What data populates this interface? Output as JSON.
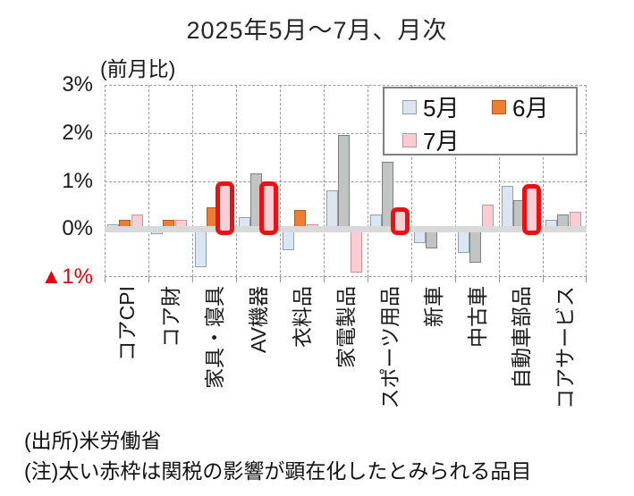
{
  "footer": {
    "source": "(出所)米労働省",
    "note": "(注)太い赤枠は関税の影響が顕在化したとみられる品目"
  },
  "colors": {
    "may_fill": "#dce6f1",
    "may_border": "#8e9fb5",
    "june_fill": "#ed7d31",
    "june_border": "#ae5a21",
    "june_gray_fill": "#c2c4c4",
    "june_gray_border": "#808080",
    "july_fill": "#f8cdd3",
    "july_border": "#cf9199",
    "red_frame": "#ee1010",
    "red_frame_inner": "#f6d0d6",
    "zero_band": "#d9d9d9",
    "gridline": "#999999",
    "negative_tick": "#e8000d"
  },
  "chart_data": {
    "type": "bar",
    "title": "2025年5月～7月、月次",
    "unit_label": "(前月比)",
    "xlabel": "",
    "ylabel": "",
    "ylim": [
      -1,
      3
    ],
    "grid": true,
    "legend_position": "top-right-inside",
    "y_ticks": [
      {
        "label": "3%",
        "value": 3
      },
      {
        "label": "2%",
        "value": 2
      },
      {
        "label": "1%",
        "value": 1
      },
      {
        "label": "0%",
        "value": 0
      },
      {
        "label": "▲1%",
        "value": -1
      }
    ],
    "categories": [
      "コアCPI",
      "コア財",
      "家具・寝具",
      "AV機器",
      "衣料品",
      "家電製品",
      "スポーツ用品",
      "新車",
      "中古車",
      "自動車部品",
      "コアサービス"
    ],
    "series": [
      {
        "name": "5月",
        "values": [
          0.1,
          -0.1,
          -0.8,
          0.25,
          -0.45,
          0.8,
          0.3,
          -0.3,
          -0.5,
          0.9,
          0.2
        ]
      },
      {
        "name": "6月",
        "values": [
          0.2,
          0.2,
          0.45,
          1.15,
          0.4,
          1.95,
          1.4,
          -0.4,
          -0.7,
          0.6,
          0.3
        ]
      },
      {
        "name": "7月",
        "values": [
          0.3,
          0.2,
          0.9,
          0.9,
          0.1,
          -0.9,
          0.35,
          0,
          0.5,
          0.85,
          0.35
        ]
      }
    ],
    "june_rendered_gray": [
      false,
      false,
      false,
      true,
      false,
      true,
      true,
      true,
      true,
      true,
      true
    ],
    "july_red_frame": [
      false,
      false,
      true,
      true,
      false,
      false,
      true,
      false,
      false,
      true,
      false
    ]
  }
}
